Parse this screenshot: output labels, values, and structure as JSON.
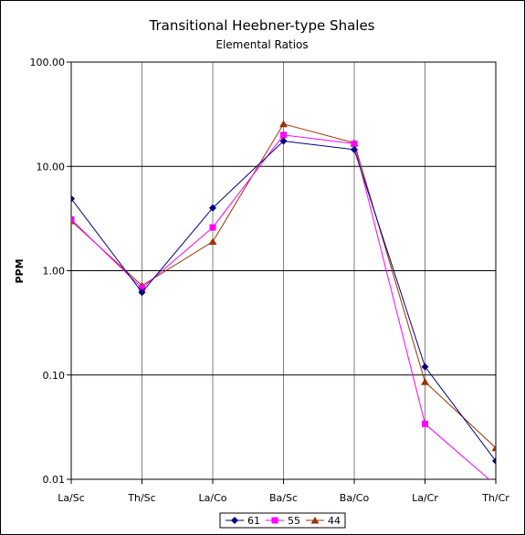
{
  "chart_data": {
    "type": "line",
    "title": "Transitional Heebner-type Shales",
    "subtitle": "Elemental Ratios",
    "xlabel": "",
    "ylabel": "PPM",
    "yscale": "log",
    "ylim": [
      0.01,
      100
    ],
    "y_ticks": [
      "100.00",
      "10.00",
      "1.00",
      "0.10",
      "0.01"
    ],
    "categories": [
      "La/Sc",
      "Th/Sc",
      "La/Co",
      "Ba/Sc",
      "Ba/Co",
      "La/Cr",
      "Th/Cr"
    ],
    "grid": "horizontal",
    "legend_position": "bottom",
    "series": [
      {
        "name": "61",
        "color": "#000080",
        "marker": "diamond",
        "values": [
          4.9,
          0.62,
          4.0,
          17.5,
          14.5,
          0.12,
          0.015
        ]
      },
      {
        "name": "55",
        "color": "#ff00ff",
        "marker": "square",
        "values": [
          3.1,
          0.68,
          2.6,
          20.0,
          16.5,
          0.034,
          0.0088
        ]
      },
      {
        "name": "44",
        "color": "#993300",
        "marker": "triangle",
        "values": [
          3.0,
          0.72,
          1.9,
          25.5,
          16.8,
          0.086,
          0.02
        ]
      }
    ]
  }
}
